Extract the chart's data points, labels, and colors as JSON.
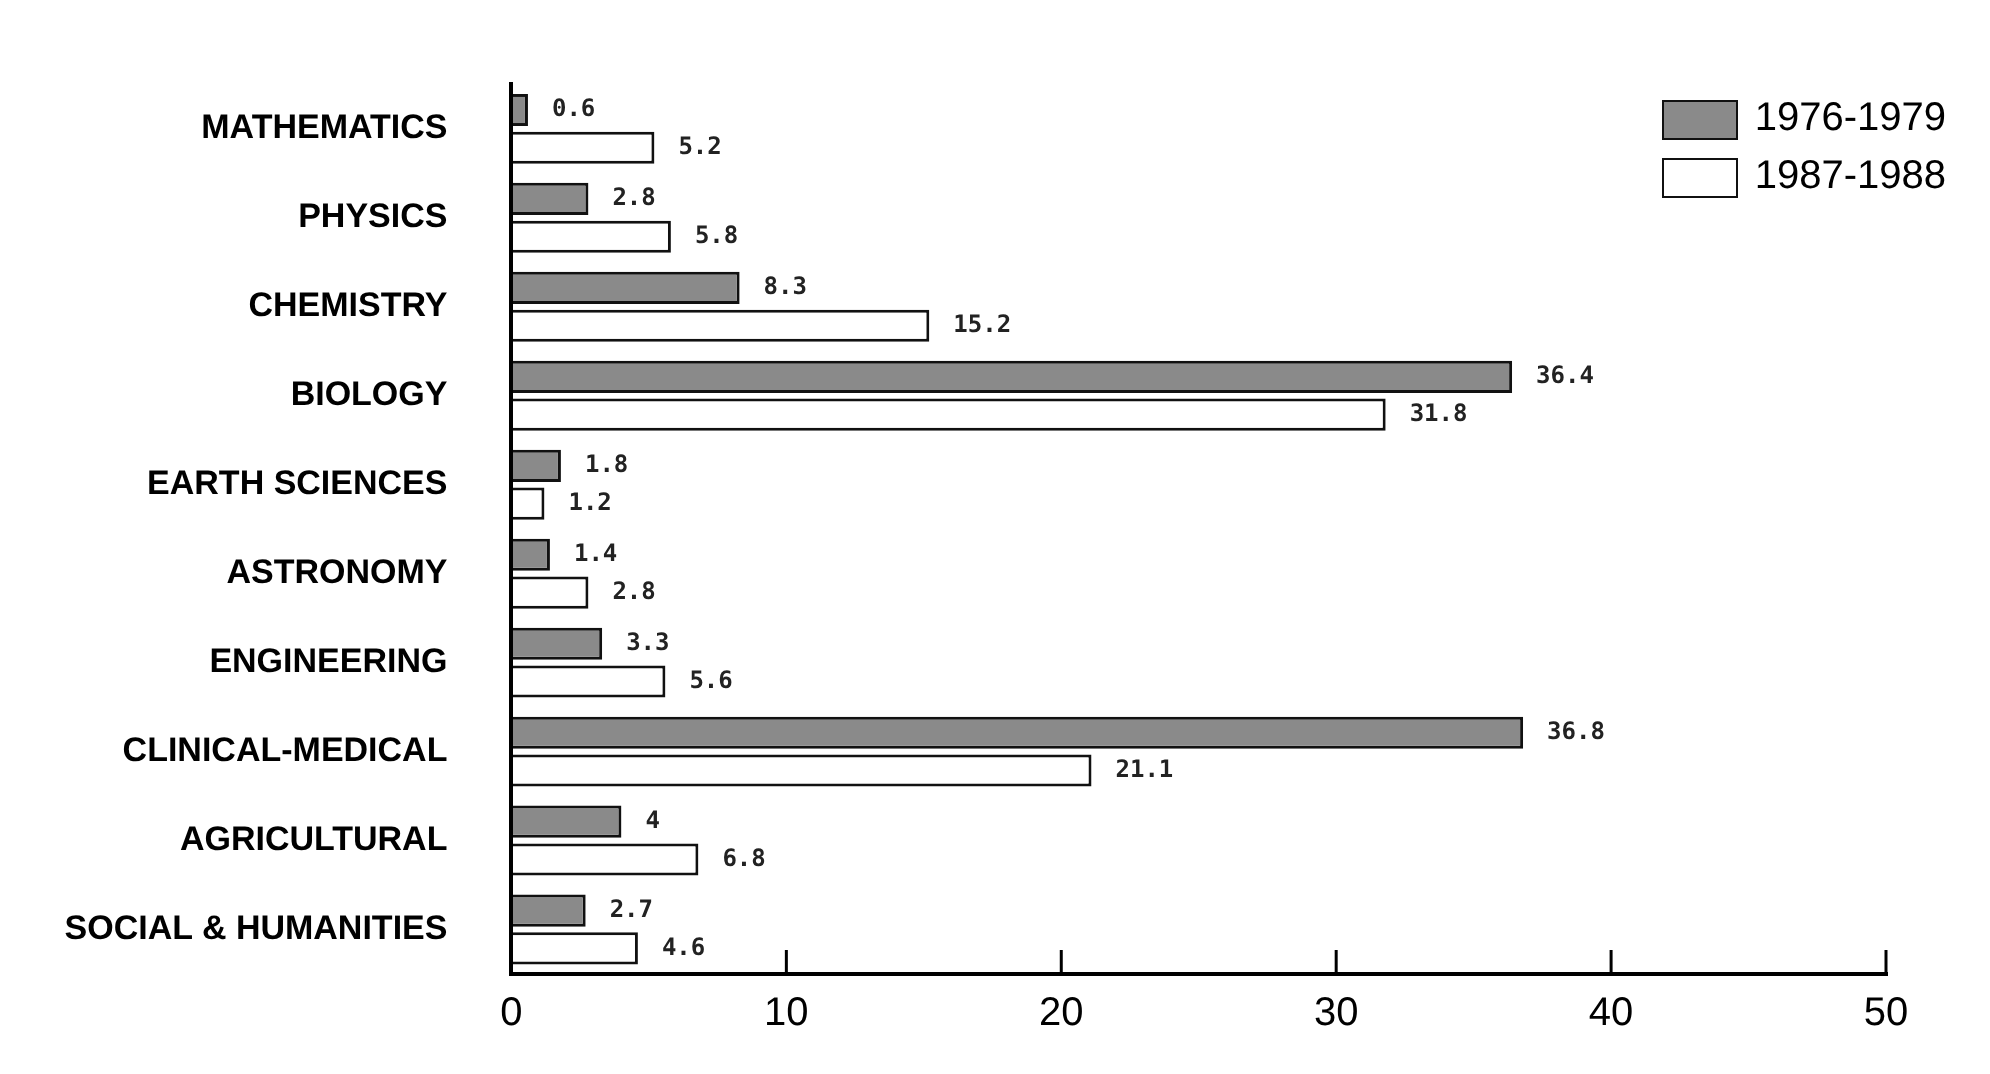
{
  "chart_data": {
    "type": "bar",
    "orientation": "horizontal",
    "categories": [
      "MATHEMATICS",
      "PHYSICS",
      "CHEMISTRY",
      "BIOLOGY",
      "EARTH SCIENCES",
      "ASTRONOMY",
      "ENGINEERING",
      "CLINICAL-MEDICAL",
      "AGRICULTURAL",
      "SOCIAL & HUMANITIES"
    ],
    "series": [
      {
        "name": "1976-1979",
        "color": "#8a8a8a",
        "values": [
          0.6,
          2.8,
          8.3,
          36.4,
          1.8,
          1.4,
          3.3,
          36.8,
          4,
          2.7
        ]
      },
      {
        "name": "1987-1988",
        "color": "#ffffff",
        "values": [
          5.2,
          5.8,
          15.2,
          31.8,
          1.2,
          2.8,
          5.6,
          21.1,
          6.8,
          4.6
        ]
      }
    ],
    "xlim": [
      0,
      50
    ],
    "xticks": [
      0,
      10,
      20,
      30,
      40,
      50
    ],
    "grid": false,
    "legend": "top right",
    "data_labels": true
  }
}
